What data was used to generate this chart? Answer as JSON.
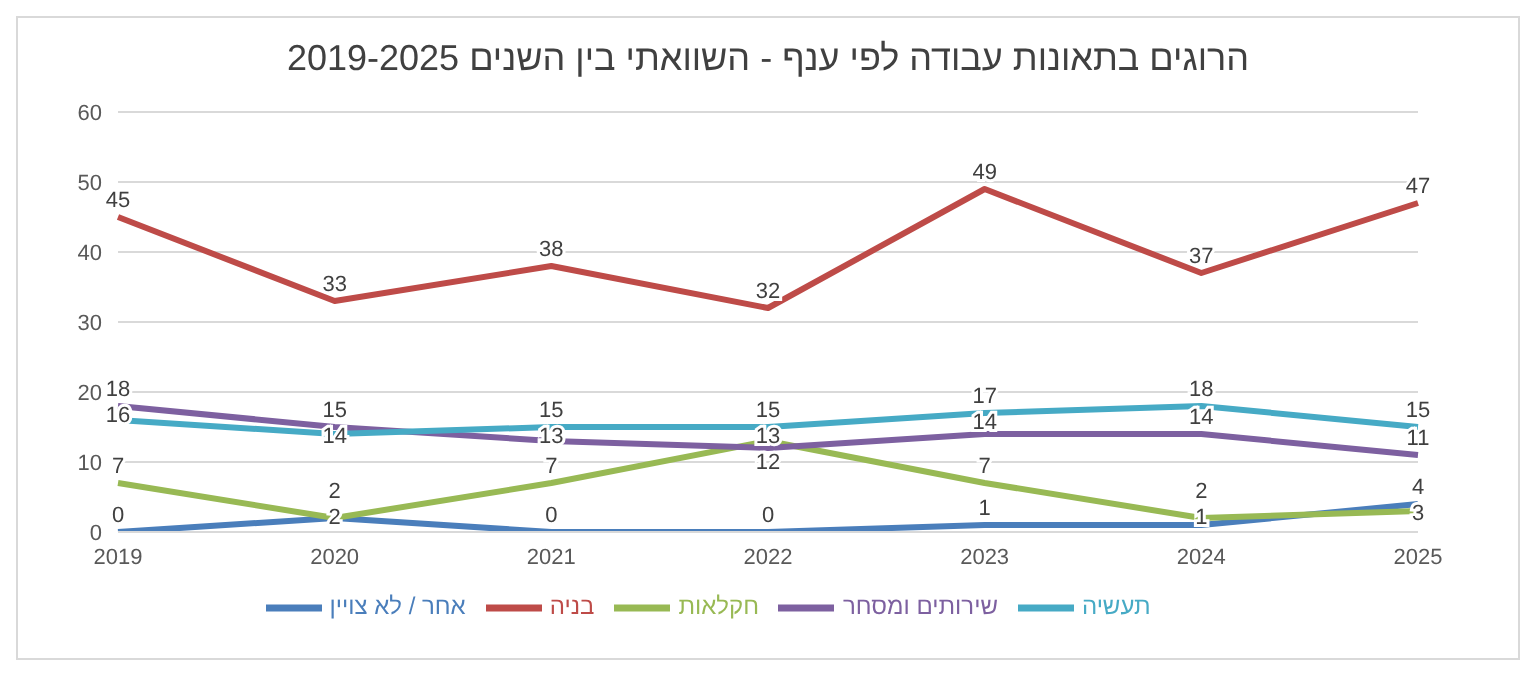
{
  "chart_data": {
    "type": "line",
    "title": "הרוגים בתאונות עבודה לפי ענף - השוואתי בין השנים 2019-2025",
    "categories": [
      "2019",
      "2020",
      "2021",
      "2022",
      "2023",
      "2024",
      "2025"
    ],
    "series": [
      {
        "name": "אחר / לא צויין",
        "color": "#4a7ebb",
        "values": [
          0,
          2,
          0,
          0,
          1,
          1,
          4
        ]
      },
      {
        "name": "בניה",
        "color": "#be4b48",
        "values": [
          45,
          33,
          38,
          32,
          49,
          37,
          47
        ]
      },
      {
        "name": "חקלאות",
        "color": "#98b954",
        "values": [
          7,
          2,
          7,
          13,
          7,
          2,
          3
        ]
      },
      {
        "name": "שירותים ומסחר",
        "color": "#7d60a0",
        "values": [
          18,
          15,
          13,
          12,
          14,
          14,
          11
        ]
      },
      {
        "name": "תעשיה",
        "color": "#46aac5",
        "values": [
          16,
          14,
          15,
          15,
          17,
          18,
          15
        ]
      }
    ],
    "ylim": [
      0,
      60
    ],
    "yticks": [
      0,
      10,
      20,
      30,
      40,
      50,
      60
    ],
    "grid": "y",
    "legend": "bottom",
    "data_labels": true,
    "marker": "none",
    "line_style": "solid"
  }
}
